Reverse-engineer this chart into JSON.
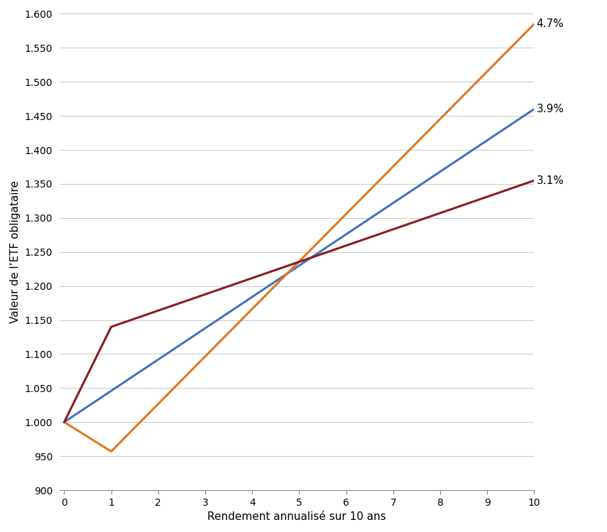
{
  "xlabel": "Rendement annualisé sur 10 ans",
  "ylabel": "Valeur de l’ETF obligataire",
  "blue_label": "3.9%",
  "orange_label": "4.7%",
  "red_label": "3.1%",
  "blue_color": "#4472C4",
  "orange_color": "#E07820",
  "red_color": "#8B1C1C",
  "blue_x": [
    0,
    10
  ],
  "blue_y": [
    1.0,
    1.46
  ],
  "orange_x": [
    0,
    1,
    10
  ],
  "orange_y": [
    1.0,
    0.957,
    1.585
  ],
  "red_x": [
    0,
    1,
    10
  ],
  "red_y": [
    1.0,
    1.14,
    1.355
  ],
  "ytick_positions": [
    0.9,
    0.95,
    1.0,
    1.05,
    1.1,
    1.15,
    1.2,
    1.25,
    1.3,
    1.35,
    1.4,
    1.45,
    1.5,
    1.55,
    1.6
  ],
  "ytick_labels": [
    "900",
    "950",
    "1.000",
    "1.050",
    "1.100",
    "1.150",
    "1.200",
    "1.250",
    "1.300",
    "1.350",
    "1.400",
    "1.450",
    "1.500",
    "1.550",
    "1.600"
  ],
  "xticks": [
    0,
    1,
    2,
    3,
    4,
    5,
    6,
    7,
    8,
    9,
    10
  ],
  "xlim": [
    -0.1,
    10.0
  ],
  "ylim": [
    0.9,
    1.6
  ],
  "label_fontsize": 11,
  "tick_fontsize": 10,
  "annot_fontsize": 11,
  "line_width": 2.2
}
